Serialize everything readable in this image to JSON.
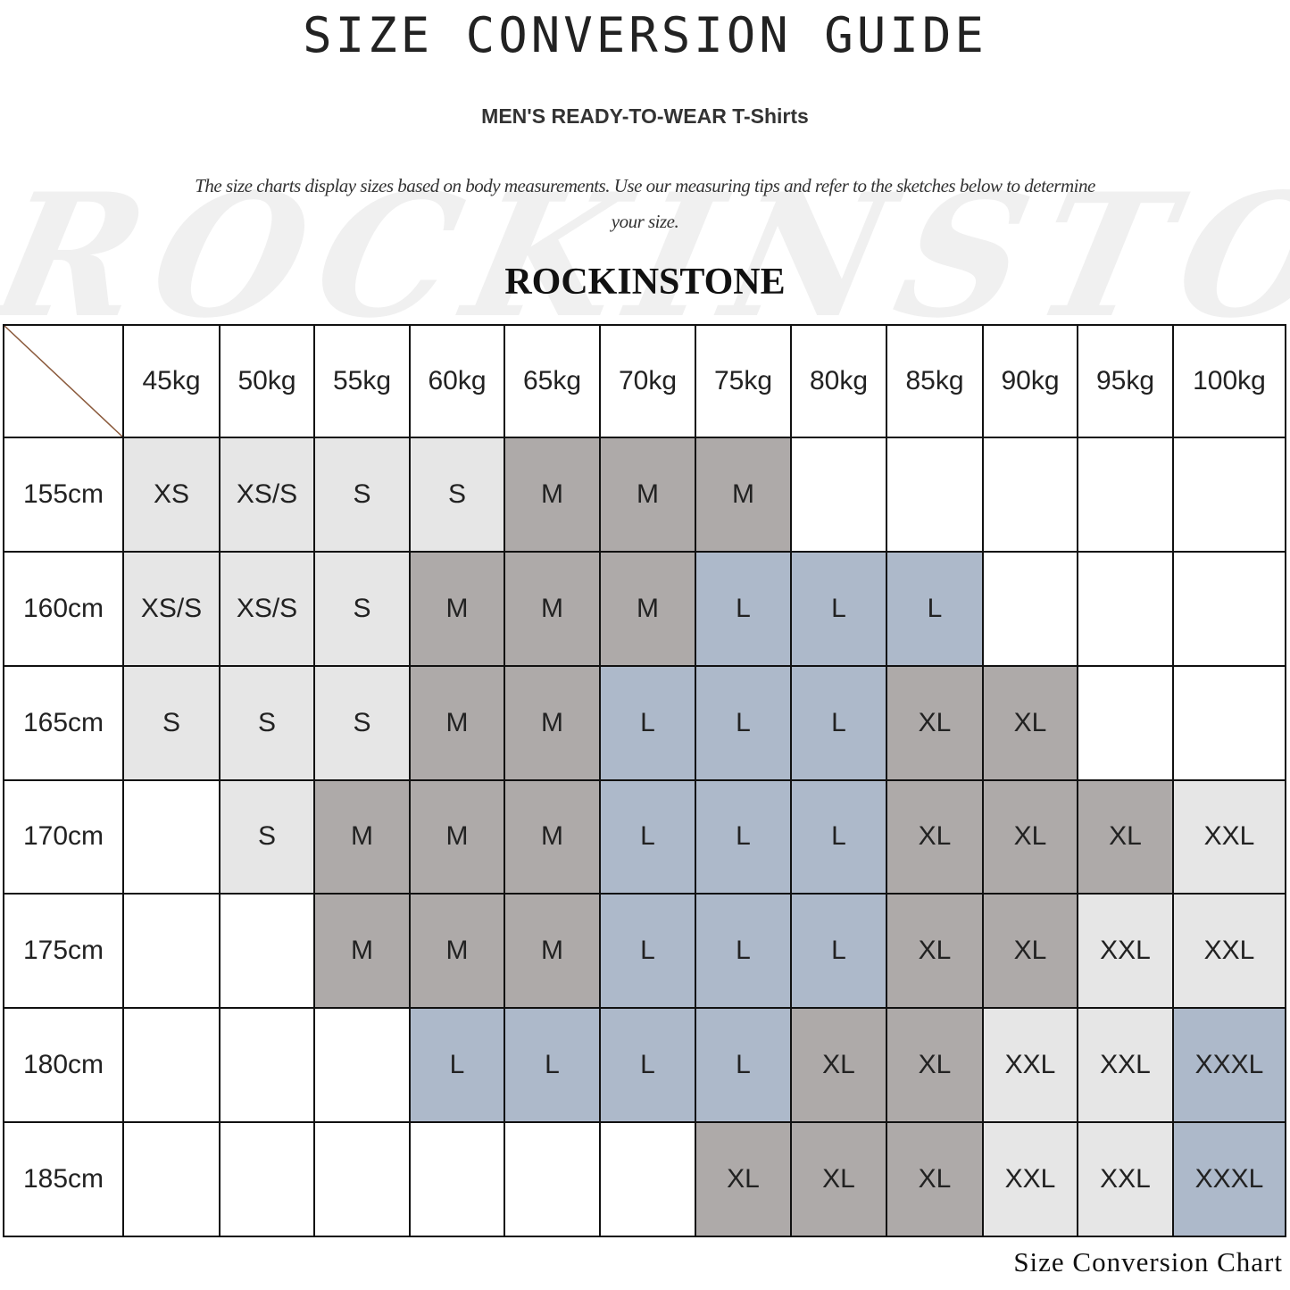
{
  "title": "SIZE CONVERSION GUIDE",
  "subtitle": "MEN'S READY-TO-WEAR T-Shirts",
  "description": "The size charts display sizes based on body measurements. Use our measuring tips and refer to the sketches below to determine your size.",
  "watermark": "ROCKINSTONE",
  "brand": "ROCKINSTONE",
  "footer": "Size Conversion Chart",
  "colors": {
    "light": "#e6e6e6",
    "dark": "#aeaaa9",
    "blue": "#adb9ca",
    "corner_line": "#8b5a3c"
  },
  "size_colors": {
    "XS": "light",
    "XS/S": "light",
    "S": "light",
    "M": "dark",
    "L": "blue",
    "XL": "dark",
    "XXL": "light",
    "XXXL": "blue"
  },
  "table": {
    "weights": [
      "45kg",
      "50kg",
      "55kg",
      "60kg",
      "65kg",
      "70kg",
      "75kg",
      "80kg",
      "85kg",
      "90kg",
      "95kg",
      "100kg"
    ],
    "rows": [
      {
        "height": "155cm",
        "sizes": [
          "XS",
          "XS/S",
          "S",
          "S",
          "M",
          "M",
          "M",
          "",
          "",
          "",
          "",
          ""
        ]
      },
      {
        "height": "160cm",
        "sizes": [
          "XS/S",
          "XS/S",
          "S",
          "M",
          "M",
          "M",
          "L",
          "L",
          "L",
          "",
          "",
          ""
        ]
      },
      {
        "height": "165cm",
        "sizes": [
          "S",
          "S",
          "S",
          "M",
          "M",
          "L",
          "L",
          "L",
          "XL",
          "XL",
          "",
          ""
        ]
      },
      {
        "height": "170cm",
        "sizes": [
          "",
          "S",
          "M",
          "M",
          "M",
          "L",
          "L",
          "L",
          "XL",
          "XL",
          "XL",
          "XXL"
        ]
      },
      {
        "height": "175cm",
        "sizes": [
          "",
          "",
          "M",
          "M",
          "M",
          "L",
          "L",
          "L",
          "XL",
          "XL",
          "XXL",
          "XXL"
        ]
      },
      {
        "height": "180cm",
        "sizes": [
          "",
          "",
          "",
          "L",
          "L",
          "L",
          "L",
          "XL",
          "XL",
          "XXL",
          "XXL",
          "XXXL"
        ]
      },
      {
        "height": "185cm",
        "sizes": [
          "",
          "",
          "",
          "",
          "",
          "",
          "XL",
          "XL",
          "XL",
          "XXL",
          "XXL",
          "XXXL"
        ]
      }
    ]
  }
}
